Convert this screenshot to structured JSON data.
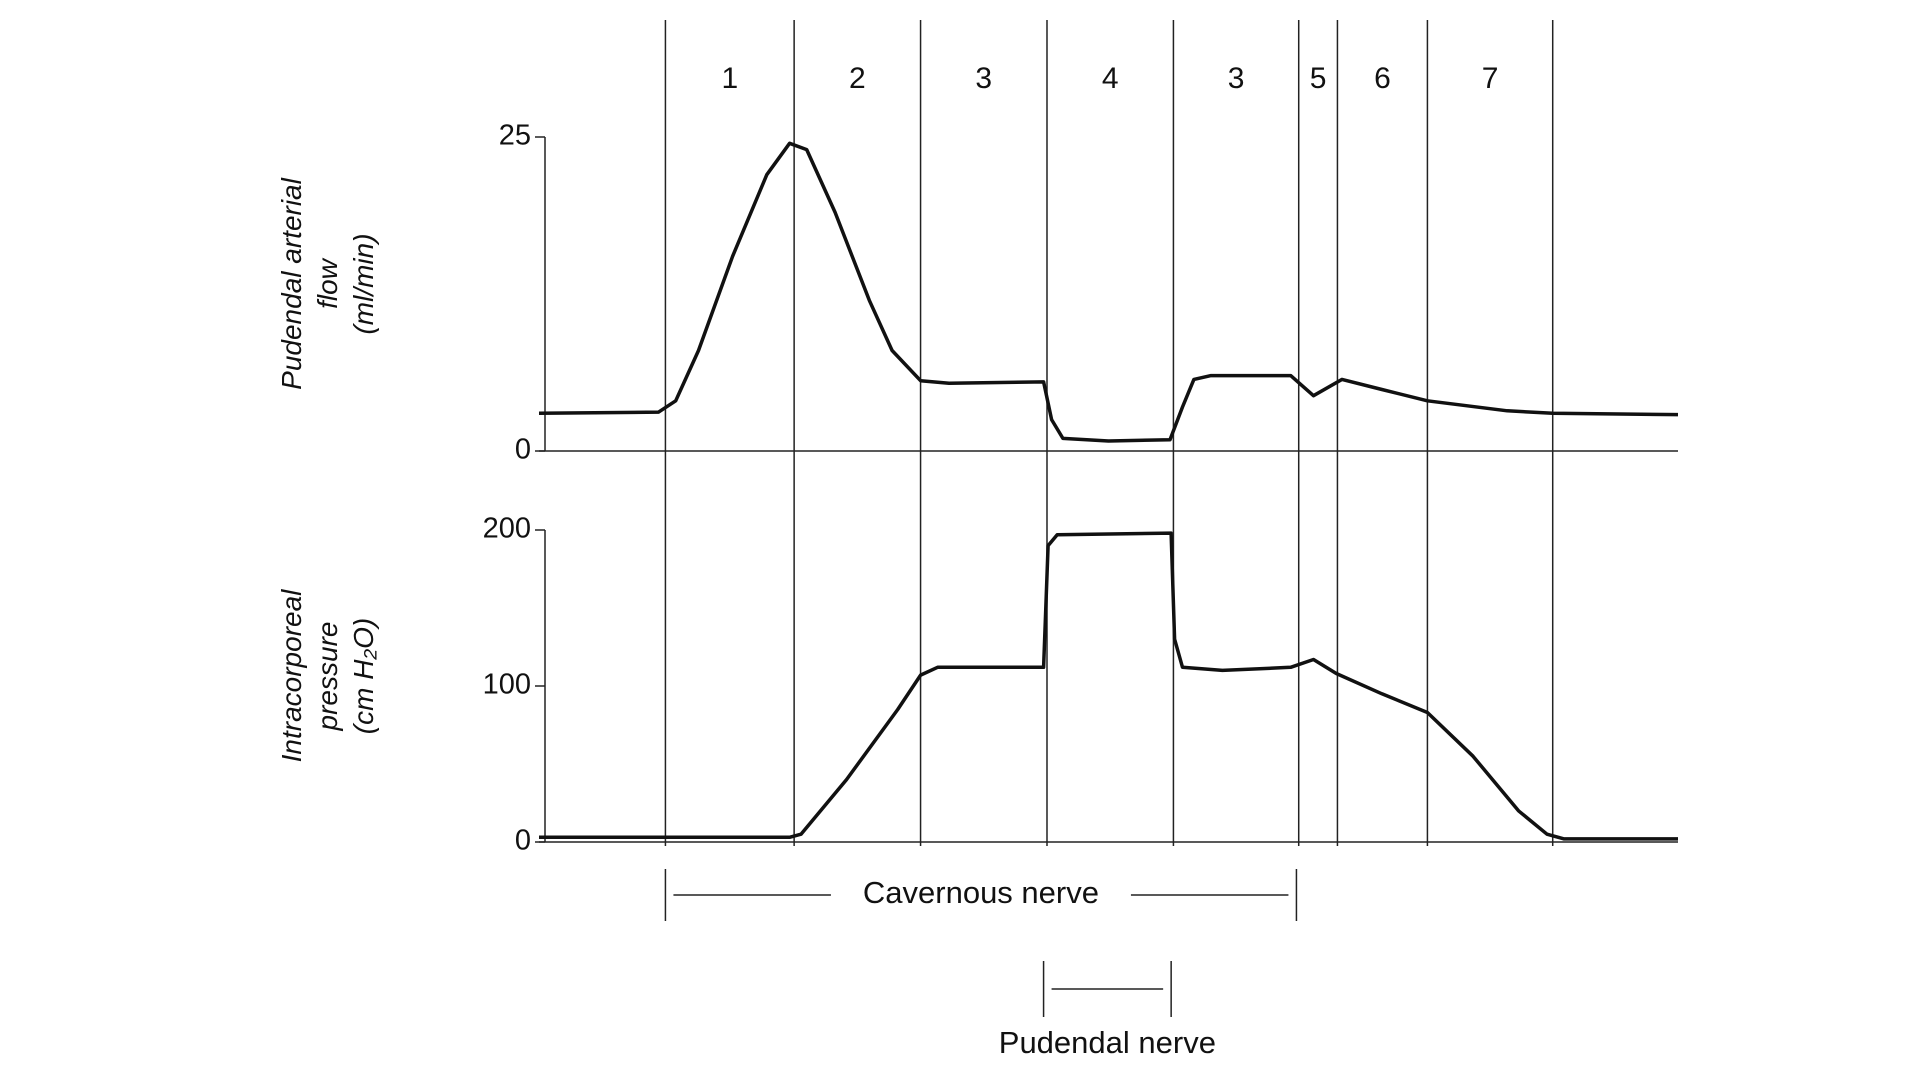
{
  "chart_data": [
    {
      "type": "line",
      "ylabel": [
        "Pudendal arterial",
        "flow",
        "(ml/min)"
      ],
      "color": "#111111",
      "xlim": [
        0,
        100
      ],
      "ylim": [
        0,
        25
      ],
      "yticks": [
        0,
        25
      ],
      "x": [
        0,
        10.5,
        12,
        14,
        17,
        20,
        22,
        23.5,
        26,
        29,
        31,
        33.5,
        36,
        44.3,
        45,
        46,
        50,
        55.4,
        56.5,
        57.5,
        59,
        66,
        68,
        70.5,
        74,
        78,
        85,
        89,
        100
      ],
      "values": [
        3.0,
        3.1,
        4.0,
        8,
        15.5,
        22,
        24.5,
        24,
        19,
        12,
        8,
        5.6,
        5.4,
        5.5,
        2.5,
        1.0,
        0.8,
        0.9,
        3.5,
        5.7,
        6.0,
        6.0,
        4.4,
        5.7,
        4.9,
        4.0,
        3.2,
        3.0,
        2.9
      ]
    },
    {
      "type": "line",
      "ylabel": [
        "Intracorporeal",
        "pressure",
        "(cm H₂O)"
      ],
      "color": "#111111",
      "xlim": [
        0,
        100
      ],
      "ylim": [
        0,
        200
      ],
      "yticks": [
        0,
        100,
        200
      ],
      "x": [
        0,
        22,
        23,
        27,
        31.5,
        33.5,
        35,
        44.3,
        44.7,
        45.5,
        55.5,
        55.8,
        56.5,
        60,
        66,
        68,
        70,
        74,
        78,
        82,
        86,
        88.5,
        90,
        100
      ],
      "values": [
        3,
        3,
        5,
        40,
        85,
        107,
        112,
        112,
        190,
        197,
        198,
        130,
        112,
        110,
        112,
        117,
        108,
        95,
        83,
        55,
        20,
        5,
        2,
        2
      ]
    }
  ],
  "phases": {
    "labels": [
      "1",
      "2",
      "3",
      "4",
      "3",
      "5",
      "6",
      "7"
    ],
    "bounds": [
      11.1,
      22.4,
      33.5,
      44.6,
      55.7,
      66.7,
      70.1,
      78.0,
      89.0
    ]
  },
  "stimuli": [
    {
      "label": "Cavernous nerve",
      "start": 11.1,
      "end": 66.5
    },
    {
      "label": "Pudendal nerve",
      "start": 44.3,
      "end": 55.5
    }
  ]
}
